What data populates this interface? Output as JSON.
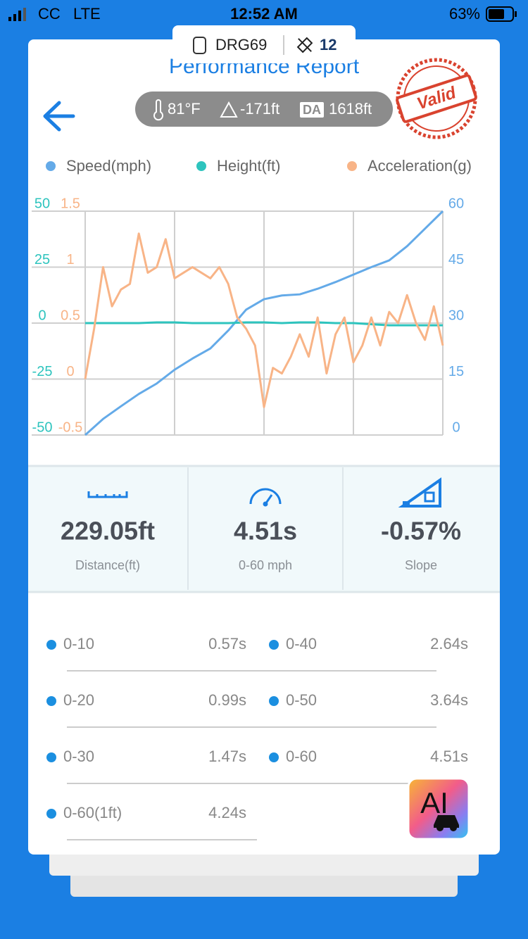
{
  "status_bar": {
    "carrier": "CC",
    "network": "LTE",
    "time": "12:52 AM",
    "battery": "63%"
  },
  "device": {
    "name": "DRG69",
    "satellites": "12"
  },
  "header": {
    "title": "Performance Report",
    "stamp": "Valid",
    "temperature": "81°F",
    "altitude": "-171ft",
    "da_badge": "DA",
    "density_altitude": "1618ft"
  },
  "chart": {
    "type": "line",
    "series": [
      {
        "name": "Speed(mph)",
        "color": "#64aae8",
        "ylim": [
          0,
          60
        ],
        "yticks": [
          0,
          15,
          30,
          45,
          60
        ],
        "values": [
          0,
          4.3,
          7.7,
          11,
          13.8,
          17.5,
          20.5,
          23.2,
          28,
          33.6,
          36.4,
          37.4,
          37.7,
          39.2,
          41,
          43,
          45,
          46.8,
          50.6,
          55.3,
          60
        ]
      },
      {
        "name": "Height(ft)",
        "color": "#2ec4be",
        "ylim": [
          -50,
          50
        ],
        "yticks": [
          -50,
          -25,
          0,
          25,
          50
        ],
        "values": [
          0,
          0,
          0,
          0,
          0.3,
          0.3,
          0,
          0,
          0,
          0.3,
          0.3,
          0,
          0.3,
          0.3,
          0,
          0,
          -0.5,
          -1,
          -1,
          -1,
          -1
        ]
      },
      {
        "name": "Acceleration(g)",
        "color": "#f8b487",
        "ylim": [
          -0.5,
          1.5
        ],
        "yticks": [
          -0.5,
          0,
          0.5,
          1,
          1.5
        ],
        "values": [
          0,
          0.45,
          1.0,
          0.65,
          0.8,
          0.85,
          1.3,
          0.95,
          1.0,
          1.25,
          0.9,
          0.95,
          1.0,
          0.95,
          0.9,
          1.0,
          0.85,
          0.55,
          0.45,
          0.3,
          -0.25,
          0.1,
          0.05,
          0.2,
          0.4,
          0.2,
          0.55,
          0.05,
          0.4,
          0.55,
          0.15,
          0.3,
          0.55,
          0.3,
          0.6,
          0.5,
          0.75,
          0.5,
          0.35,
          0.65,
          0.3
        ]
      }
    ]
  },
  "stats": [
    {
      "value": "229.05ft",
      "label": "Distance(ft)"
    },
    {
      "value": "4.51s",
      "label": "0-60 mph"
    },
    {
      "value": "-0.57%",
      "label": "Slope"
    }
  ],
  "splits": [
    {
      "label": "0-10",
      "time": "0.57s"
    },
    {
      "label": "0-40",
      "time": "2.64s"
    },
    {
      "label": "0-20",
      "time": "0.99s"
    },
    {
      "label": "0-50",
      "time": "3.64s"
    },
    {
      "label": "0-30",
      "time": "1.47s"
    },
    {
      "label": "0-60",
      "time": "4.51s"
    },
    {
      "label": "0-60(1ft)",
      "time": "4.24s"
    }
  ],
  "ai_badge": "AI"
}
